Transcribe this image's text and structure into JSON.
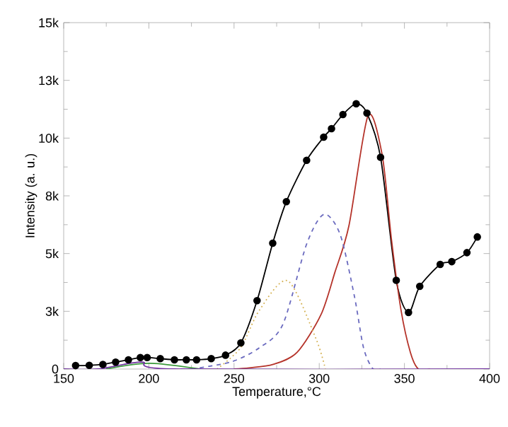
{
  "chart_data": {
    "type": "line",
    "xlabel": "Temperature,°C",
    "ylabel": "Intensity (a. u.)",
    "xlim": [
      150,
      400
    ],
    "xticks": [
      150,
      200,
      250,
      300,
      350,
      400
    ],
    "ylim": [
      0,
      15000
    ],
    "yticks": [
      0,
      {
        "value": 2500,
        "label": "3k"
      },
      {
        "value": 5000,
        "label": "5k"
      },
      {
        "value": 7500,
        "label": "8k"
      },
      {
        "value": 10000,
        "label": "10k"
      },
      {
        "value": 12500,
        "label": "13k"
      },
      {
        "value": 15000,
        "label": "15k"
      }
    ],
    "grid": false,
    "series": [
      {
        "color": "#000000",
        "marker": "circle",
        "line_style": "solid",
        "x": [
          157,
          165,
          173,
          180.5,
          188,
          195,
          199,
          206.7,
          215,
          222,
          228,
          236.6,
          245,
          254,
          263.5,
          272.7,
          280.7,
          292.6,
          302.6,
          307.2,
          313.9,
          321.7,
          328,
          336,
          345.2,
          352.4,
          359,
          371,
          377.8,
          386.7,
          392.8
        ],
        "values": [
          150,
          160,
          200,
          300,
          400,
          500,
          500,
          450,
          400,
          400,
          400,
          450,
          600,
          1130,
          2960,
          5450,
          7250,
          9040,
          10040,
          10410,
          11020,
          11490,
          11080,
          9170,
          3840,
          2450,
          3580,
          4530,
          4650,
          5040,
          5720
        ]
      },
      {
        "color": "#b5332a",
        "marker": "none",
        "line_style": "solid",
        "x": [
          250,
          259,
          273,
          287,
          301,
          309.2,
          317.5,
          328.6,
          336.9,
          342.4,
          348,
          353.5,
          358.2,
          365
        ],
        "values": [
          0,
          50,
          200,
          720,
          2350,
          4190,
          6230,
          10960,
          9290,
          5610,
          2550,
          720,
          0,
          0
        ]
      },
      {
        "color": "#6a6abf",
        "marker": "none",
        "line_style": "dashed",
        "x": [
          225,
          248.3,
          264.9,
          278.7,
          292.6,
          302.8,
          312.3,
          320.6,
          326,
          331.3,
          336
        ],
        "values": [
          0,
          310,
          920,
          1940,
          5410,
          6700,
          5820,
          3170,
          920,
          30,
          0
        ]
      },
      {
        "color": "#d4b050",
        "marker": "none",
        "line_style": "dotted",
        "x": [
          240,
          253.8,
          264.9,
          281.5,
          298,
          303.6
        ],
        "values": [
          0,
          920,
          2550,
          3820,
          1330,
          0
        ]
      },
      {
        "color": "#3a9a3a",
        "marker": "none",
        "line_style": "solid",
        "x": [
          175,
          200,
          230
        ],
        "values": [
          0,
          250,
          0
        ]
      },
      {
        "color": "#7030a0",
        "marker": "none",
        "line_style": "solid",
        "x": [
          150,
          170,
          195.7,
          215,
          400
        ],
        "values": [
          0,
          0,
          300,
          0,
          0
        ]
      }
    ]
  }
}
